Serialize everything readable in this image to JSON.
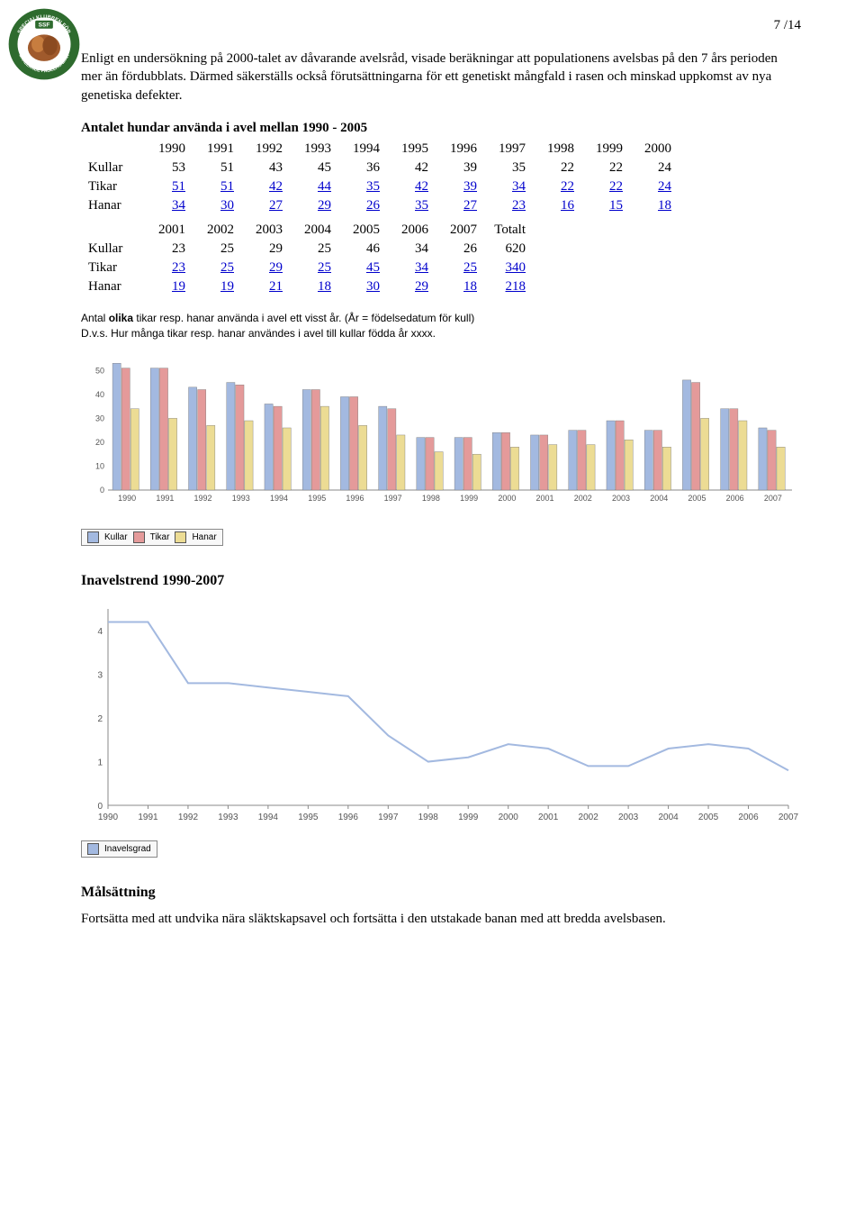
{
  "page_number": "7 /14",
  "intro_para": "Enligt en undersökning på 2000-talet av dåvarande avelsråd, visade beräkningar att populationens avelsbas på den 7 års perioden  mer än fördubblats. Därmed säkerställs också förutsättningarna för ett genetiskt mångfald i rasen och minskad uppkomst av nya genetiska defekter.",
  "table_title": "Antalet hundar använda i avel mellan 1990 - 2005",
  "table1": {
    "years": [
      "1990",
      "1991",
      "1992",
      "1993",
      "1994",
      "1995",
      "1996",
      "1997",
      "1998",
      "1999",
      "2000"
    ],
    "rows": [
      {
        "label": "Kullar",
        "vals": [
          "53",
          "51",
          "43",
          "45",
          "36",
          "42",
          "39",
          "35",
          "22",
          "22",
          "24"
        ],
        "link": false
      },
      {
        "label": "Tikar",
        "vals": [
          "51",
          "51",
          "42",
          "44",
          "35",
          "42",
          "39",
          "34",
          "22",
          "22",
          "24"
        ],
        "link": true
      },
      {
        "label": "Hanar",
        "vals": [
          "34",
          "30",
          "27",
          "29",
          "26",
          "35",
          "27",
          "23",
          "16",
          "15",
          "18"
        ],
        "link": true
      }
    ]
  },
  "table2": {
    "years": [
      "2001",
      "2002",
      "2003",
      "2004",
      "2005",
      "2006",
      "2007",
      "Totalt"
    ],
    "rows": [
      {
        "label": "Kullar",
        "vals": [
          "23",
          "25",
          "29",
          "25",
          "46",
          "34",
          "26",
          "620"
        ],
        "link": false
      },
      {
        "label": "Tikar",
        "vals": [
          "23",
          "25",
          "29",
          "25",
          "45",
          "34",
          "25",
          "340"
        ],
        "link": true
      },
      {
        "label": "Hanar",
        "vals": [
          "19",
          "19",
          "21",
          "18",
          "30",
          "29",
          "18",
          "218"
        ],
        "link": true
      }
    ]
  },
  "bar_caption_html": "Antal <b>olika</b> tikar resp. hanar använda i avel ett visst år. (År = födelsedatum för kull)\nD.v.s. Hur många tikar resp. hanar användes i avel till kullar födda år xxxx.",
  "bar_chart": {
    "type": "bar-grouped",
    "categories": [
      "1990",
      "1991",
      "1992",
      "1993",
      "1994",
      "1995",
      "1996",
      "1997",
      "1998",
      "1999",
      "2000",
      "2001",
      "2002",
      "2003",
      "2004",
      "2005",
      "2006",
      "2007"
    ],
    "series": [
      {
        "name": "Kullar",
        "color": "#a3b9e0",
        "values": [
          53,
          51,
          43,
          45,
          36,
          42,
          39,
          35,
          22,
          22,
          24,
          23,
          25,
          29,
          25,
          46,
          34,
          26
        ]
      },
      {
        "name": "Tikar",
        "color": "#e49a9a",
        "values": [
          51,
          51,
          42,
          44,
          35,
          42,
          39,
          34,
          22,
          22,
          24,
          23,
          25,
          29,
          25,
          45,
          34,
          25
        ]
      },
      {
        "name": "Hanar",
        "color": "#ecdc94",
        "values": [
          34,
          30,
          27,
          29,
          26,
          35,
          27,
          23,
          16,
          15,
          18,
          19,
          19,
          21,
          18,
          30,
          29,
          18
        ]
      }
    ],
    "ylim": [
      0,
      55
    ],
    "ytick_step": 10,
    "background": "#ffffff",
    "axis_color": "#888888",
    "label_font": "Arial",
    "label_fontsize": 9
  },
  "inavel_title": "Inavelstrend 1990-2007",
  "line_chart": {
    "type": "line",
    "categories": [
      "1990",
      "1991",
      "1992",
      "1993",
      "1994",
      "1995",
      "1996",
      "1997",
      "1998",
      "1999",
      "2000",
      "2001",
      "2002",
      "2003",
      "2004",
      "2005",
      "2006",
      "2007"
    ],
    "series": [
      {
        "name": "Inavelsgrad",
        "color": "#a3b9e0",
        "values": [
          4.2,
          4.2,
          2.8,
          2.8,
          2.7,
          2.6,
          2.5,
          1.6,
          1.0,
          1.1,
          1.4,
          1.3,
          0.9,
          0.9,
          1.3,
          1.4,
          1.3,
          0.8
        ]
      }
    ],
    "ylim": [
      0,
      4.5
    ],
    "ytick_step": 1,
    "background": "#ffffff",
    "axis_color": "#888888",
    "grid_color": "#cccccc",
    "line_width": 2,
    "label_font": "Arial",
    "label_fontsize": 10
  },
  "malsattning_title": "Målsättning",
  "malsattning_text": "Fortsätta med att undvika nära släktskapsavel och fortsätta i den utstakade banan med att bredda avelsbasen.",
  "logo": {
    "outer_ring": "#2e6b2e",
    "inner": "#ffffff",
    "center": "#a05a2c",
    "top_text": "SPECIALKLUBBEN FÖR",
    "bottom_text": "SKÄLLANDE FÅGELHUNDAR",
    "badge_text": "SSF"
  }
}
